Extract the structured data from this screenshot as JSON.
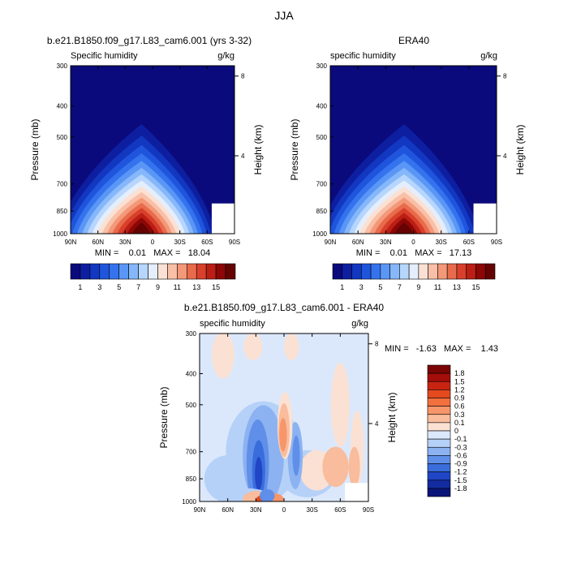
{
  "figure": {
    "title": "JJA"
  },
  "chart_data": [
    {
      "type": "heatmap",
      "panel_title": "b.e21.B1850.f09_g17.L83_cam6.001 (yrs 3-32)",
      "left_label": "Specific humidity",
      "right_label": "g/kg",
      "ylabel": "Pressure (mb)",
      "ylabel_right": "Height (km)",
      "x_ticks": [
        "90N",
        "60N",
        "30N",
        "0",
        "30S",
        "60S",
        "90S"
      ],
      "y_ticks": [
        "300",
        "400",
        "500",
        "700",
        "850",
        "1000"
      ],
      "y_ticks_right": [
        "8",
        "4"
      ],
      "xlim": [
        90,
        -90
      ],
      "ylim": [
        1000,
        300
      ],
      "stats_text": "MIN =    0.01   MAX =   18.04",
      "min": 0.01,
      "max": 18.04,
      "peak_lat": 12,
      "colorbar": "full"
    },
    {
      "type": "heatmap",
      "panel_title": "ERA40",
      "left_label": "specific humidity",
      "right_label": "g/kg",
      "ylabel": "Pressure (mb)",
      "ylabel_right": "Height (km)",
      "x_ticks": [
        "90N",
        "60N",
        "30N",
        "0",
        "30S",
        "60S",
        "90S"
      ],
      "y_ticks": [
        "300",
        "400",
        "500",
        "700",
        "850",
        "1000"
      ],
      "y_ticks_right": [
        "8",
        "4"
      ],
      "xlim": [
        90,
        -90
      ],
      "ylim": [
        1000,
        300
      ],
      "stats_text": "MIN =    0.01   MAX =   17.13",
      "min": 0.01,
      "max": 17.13,
      "peak_lat": 10,
      "colorbar": "full"
    },
    {
      "type": "heatmap",
      "panel_title": "b.e21.B1850.f09_g17.L83_cam6.001 - ERA40",
      "left_label": "specific humidity",
      "right_label": "g/kg",
      "ylabel": "Pressure (mb)",
      "ylabel_right": "Height (km)",
      "x_ticks": [
        "90N",
        "60N",
        "30N",
        "0",
        "30S",
        "60S",
        "90S"
      ],
      "y_ticks": [
        "300",
        "400",
        "500",
        "700",
        "850",
        "1000"
      ],
      "y_ticks_right": [
        "8",
        "4"
      ],
      "xlim": [
        90,
        -90
      ],
      "ylim": [
        1000,
        300
      ],
      "stats_text": "MIN =   -1.63   MAX =    1.43",
      "min": -1.63,
      "max": 1.43,
      "colorbar": "diff"
    }
  ],
  "colorbars": {
    "full": {
      "labels": [
        "1",
        "3",
        "5",
        "7",
        "9",
        "11",
        "13",
        "15"
      ],
      "colors": [
        "#0a0a7d",
        "#0d1fa0",
        "#1237c0",
        "#1f55dc",
        "#3573ee",
        "#5a96f5",
        "#86b7fa",
        "#b7d6fd",
        "#e4eefc",
        "#fbe1d3",
        "#f9bfa7",
        "#f39878",
        "#e86b4c",
        "#d8402b",
        "#bb1e14",
        "#8c0705",
        "#650303"
      ]
    },
    "diff": {
      "labels": [
        "1.8",
        "1.5",
        "1.2",
        "0.9",
        "0.6",
        "0.3",
        "0.1",
        "0",
        "-0.1",
        "-0.3",
        "-0.6",
        "-0.9",
        "-1.2",
        "-1.5",
        "-1.8"
      ],
      "colors": [
        "#7a0505",
        "#a50e0a",
        "#c92412",
        "#e44a1e",
        "#f2703e",
        "#f6966a",
        "#f9bc9c",
        "#fbe1d3",
        "#dbe8fb",
        "#b6d1f8",
        "#8cb2f2",
        "#5f8fe8",
        "#3a6ddc",
        "#2046c6",
        "#122b9e",
        "#0a1478"
      ]
    }
  }
}
